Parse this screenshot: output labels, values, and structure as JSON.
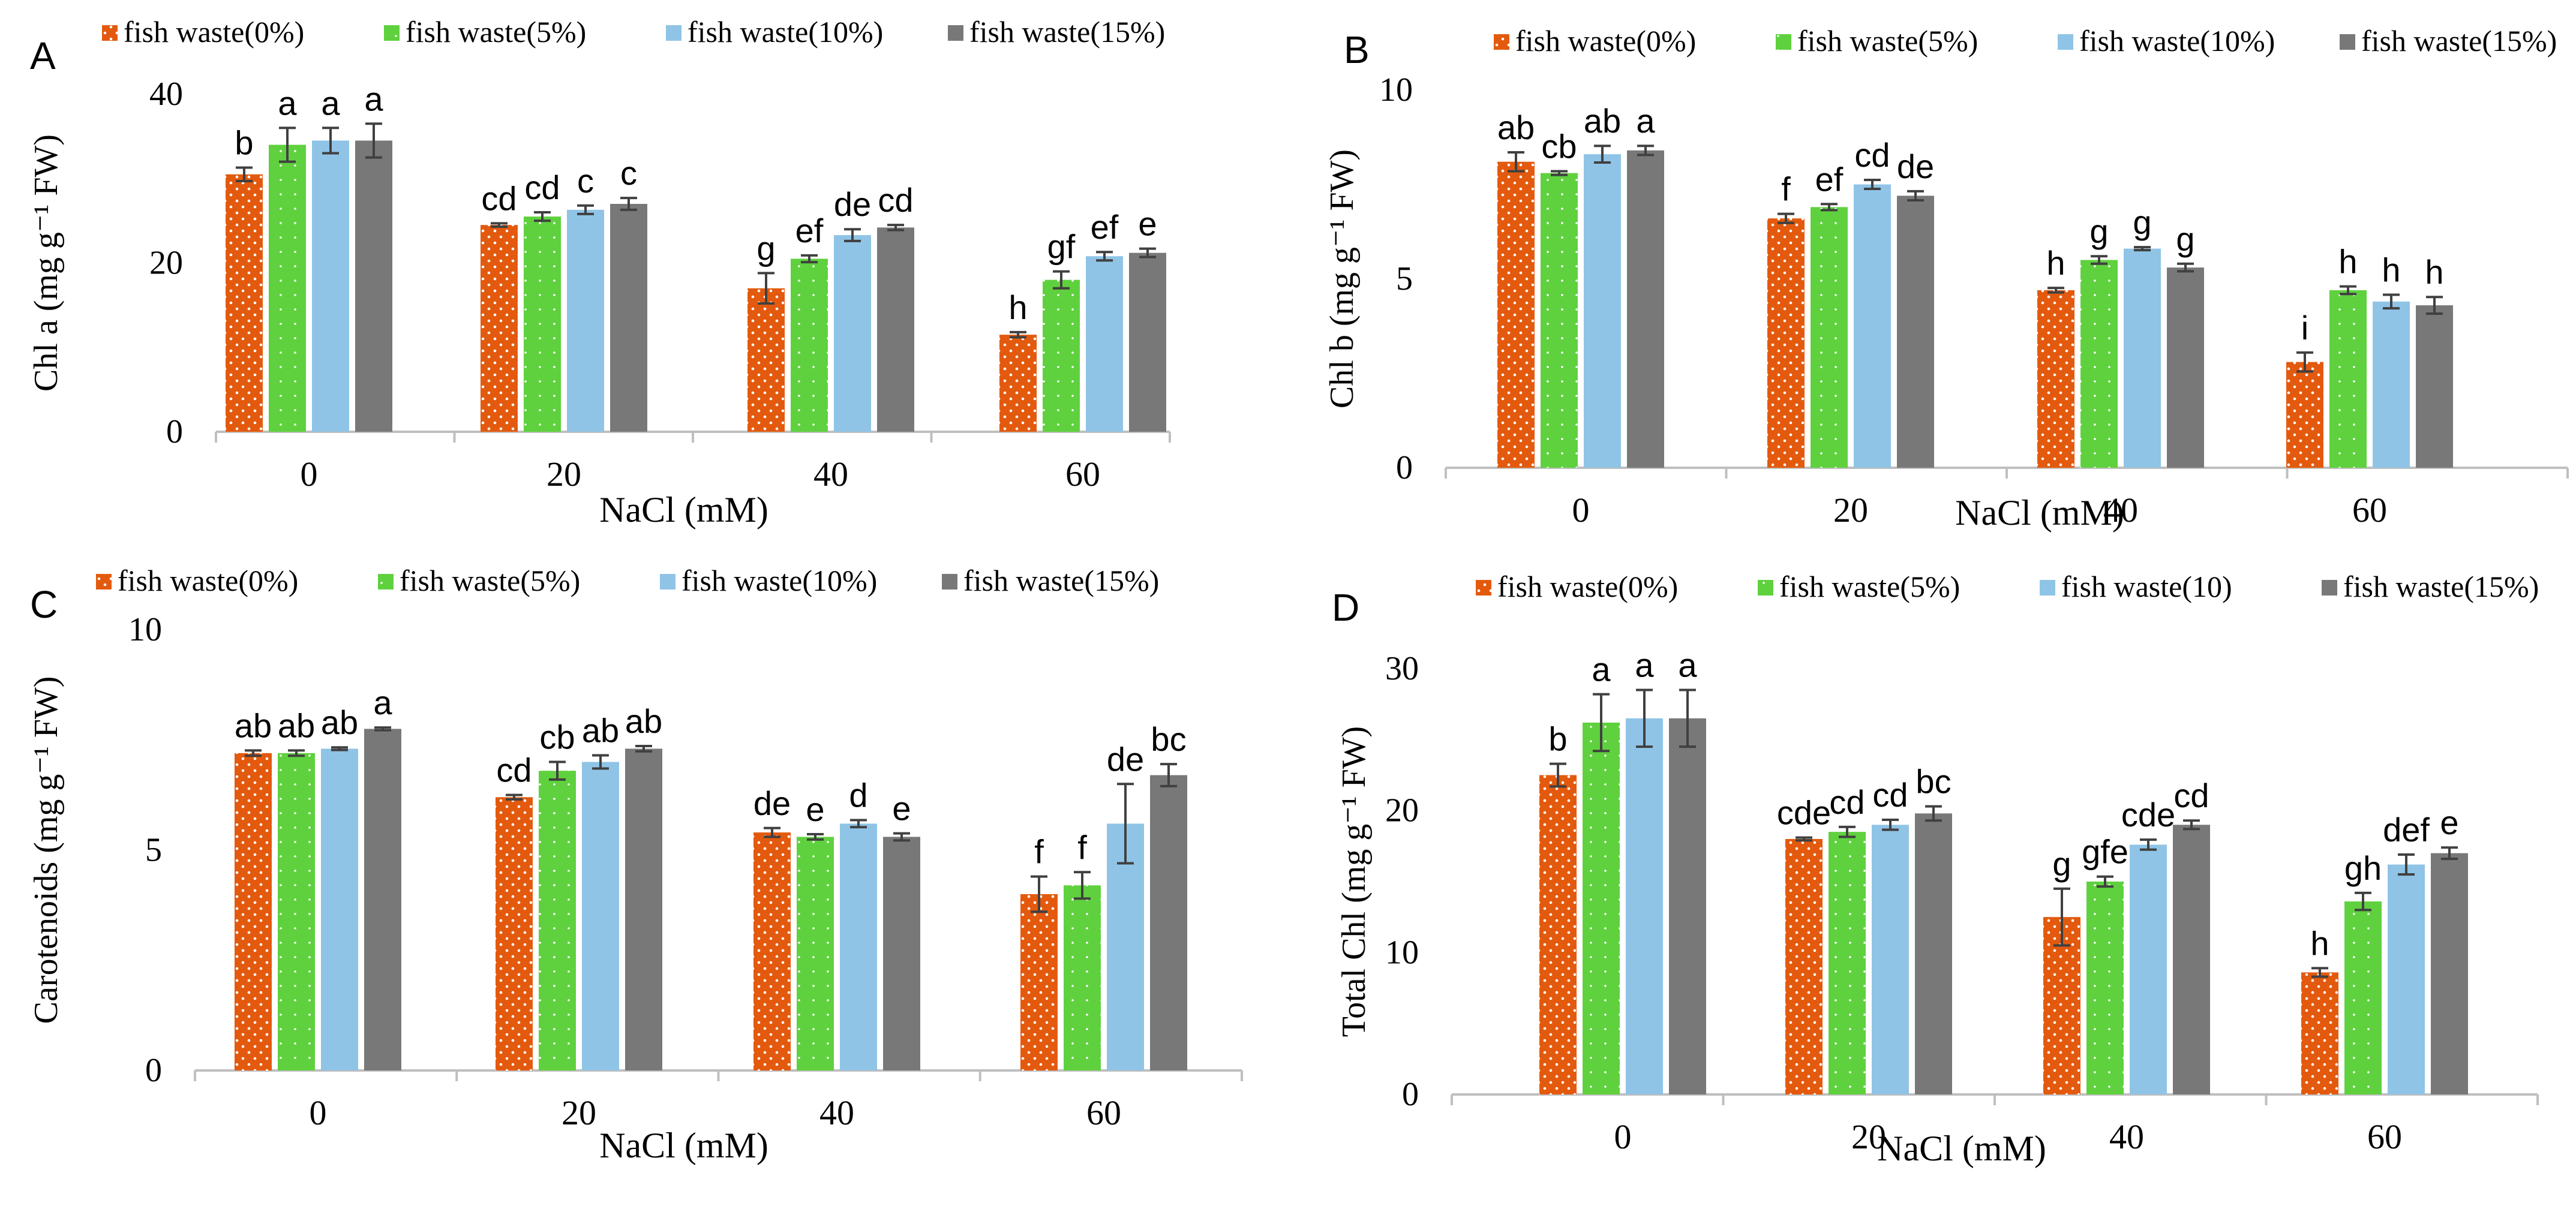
{
  "figure": {
    "xlabel": "NaCl (mM)",
    "categories": [
      "0",
      "20",
      "40",
      "60"
    ],
    "series_colors": [
      "#E35A0E",
      "#5FD13E",
      "#8FC4E6",
      "#787878"
    ]
  },
  "chart_data": [
    {
      "type": "bar",
      "panel_letter": "A",
      "title": "",
      "xlabel": "NaCl (mM)",
      "ylabel": "Chl a (mg g⁻¹ FW)",
      "ylim": [
        0,
        40
      ],
      "yticks": [
        "0",
        "20",
        "40"
      ],
      "categories": [
        "0",
        "20",
        "40",
        "60"
      ],
      "legend": [
        "fish waste(0%)",
        "fish waste(5%)",
        "fish waste(10%)",
        "fish waste(15%)"
      ],
      "series": [
        {
          "name": "fish waste(0%)",
          "values": [
            30.5,
            24.5,
            17,
            11.5
          ],
          "errors": [
            0.8,
            0.2,
            1.8,
            0.3
          ],
          "labels": [
            "b",
            "cd",
            "g",
            "h"
          ]
        },
        {
          "name": "fish waste(5%)",
          "values": [
            34,
            25.5,
            20.5,
            18
          ],
          "errors": [
            2,
            0.5,
            0.4,
            1
          ],
          "labels": [
            "a",
            "cd",
            "ef",
            "gf"
          ]
        },
        {
          "name": "fish waste(10%)",
          "values": [
            34.5,
            26.3,
            23.3,
            20.8
          ],
          "errors": [
            1.5,
            0.5,
            0.7,
            0.5
          ],
          "labels": [
            "a",
            "c",
            "de",
            "ef"
          ]
        },
        {
          "name": "fish waste(15%)",
          "values": [
            34.5,
            27,
            24.2,
            21.2
          ],
          "errors": [
            2,
            0.7,
            0.3,
            0.5
          ],
          "labels": [
            "a",
            "c",
            "cd",
            "e"
          ]
        }
      ]
    },
    {
      "type": "bar",
      "panel_letter": "B",
      "title": "",
      "xlabel": "NaCl (mM)",
      "ylabel": "Chl b (mg g⁻¹ FW)",
      "ylim": [
        0,
        10
      ],
      "yticks": [
        "0",
        "5",
        "10"
      ],
      "categories": [
        "0",
        "20",
        "40",
        "60"
      ],
      "legend": [
        "fish waste(0%)",
        "fish waste(5%)",
        "fish waste(10%)",
        "fish waste(15%)"
      ],
      "series": [
        {
          "name": "fish waste(0%)",
          "values": [
            8.1,
            6.6,
            4.7,
            2.8
          ],
          "errors": [
            0.25,
            0.12,
            0.06,
            0.25
          ],
          "labels": [
            "ab",
            "f",
            "h",
            "i"
          ]
        },
        {
          "name": "fish waste(5%)",
          "values": [
            7.8,
            6.9,
            5.5,
            4.7
          ],
          "errors": [
            0.05,
            0.08,
            0.1,
            0.1
          ],
          "labels": [
            "cb",
            "ef",
            "g",
            "h"
          ]
        },
        {
          "name": "fish waste(10%)",
          "values": [
            8.3,
            7.5,
            5.8,
            4.4
          ],
          "errors": [
            0.22,
            0.12,
            0.04,
            0.18
          ],
          "labels": [
            "ab",
            "cd",
            "g",
            "h"
          ]
        },
        {
          "name": "fish waste(15%)",
          "values": [
            8.4,
            7.2,
            5.3,
            4.3
          ],
          "errors": [
            0.12,
            0.12,
            0.1,
            0.22
          ],
          "labels": [
            "a",
            "de",
            "g",
            "h"
          ]
        }
      ]
    },
    {
      "type": "bar",
      "panel_letter": "C",
      "title": "",
      "xlabel": "NaCl (mM)",
      "ylabel": "Carotenoids (mg g⁻¹ FW)",
      "ylim": [
        0,
        10
      ],
      "yticks": [
        "0",
        "5",
        "10"
      ],
      "categories": [
        "0",
        "20",
        "40",
        "60"
      ],
      "legend": [
        "fish waste(0%)",
        "fish waste(5%)",
        "fish waste(10%)",
        "fish waste(15%)"
      ],
      "series": [
        {
          "name": "fish waste(0%)",
          "values": [
            7.2,
            6.2,
            5.4,
            4.0
          ],
          "errors": [
            0.06,
            0.05,
            0.1,
            0.4
          ],
          "labels": [
            "ab",
            "cd",
            "de",
            "f"
          ]
        },
        {
          "name": "fish waste(5%)",
          "values": [
            7.2,
            6.8,
            5.3,
            4.2
          ],
          "errors": [
            0.06,
            0.2,
            0.06,
            0.3
          ],
          "labels": [
            "ab",
            "cb",
            "e",
            "f"
          ]
        },
        {
          "name": "fish waste(10%)",
          "values": [
            7.3,
            7.0,
            5.6,
            5.6
          ],
          "errors": [
            0.03,
            0.15,
            0.08,
            0.9
          ],
          "labels": [
            "ab",
            "ab",
            "d",
            "de"
          ]
        },
        {
          "name": "fish waste(15%)",
          "values": [
            7.75,
            7.3,
            5.3,
            6.7
          ],
          "errors": [
            0.03,
            0.06,
            0.08,
            0.25
          ],
          "labels": [
            "a",
            "ab",
            "e",
            "bc"
          ]
        }
      ]
    },
    {
      "type": "bar",
      "panel_letter": "D",
      "title": "",
      "xlabel": "NaCl (mM)",
      "ylabel": "Total Chl (mg g⁻¹ FW)",
      "ylim": [
        0,
        30
      ],
      "yticks": [
        "0",
        "10",
        "20",
        "30"
      ],
      "categories": [
        "0",
        "20",
        "40",
        "60"
      ],
      "legend": [
        "fish waste(0%)",
        "fish waste(5%)",
        "fish waste(10)",
        "fish waste(15%)"
      ],
      "series": [
        {
          "name": "fish waste(0%)",
          "values": [
            22.5,
            18,
            12.5,
            8.6
          ],
          "errors": [
            0.8,
            0.1,
            2,
            0.3
          ],
          "labels": [
            "b",
            "cde",
            "g",
            "h"
          ]
        },
        {
          "name": "fish waste(5%)",
          "values": [
            26.2,
            18.5,
            15,
            13.6
          ],
          "errors": [
            2,
            0.35,
            0.35,
            0.6
          ],
          "labels": [
            "a",
            "cd",
            "gfe",
            "gh"
          ]
        },
        {
          "name": "fish waste(10)",
          "values": [
            26.5,
            19,
            17.6,
            16.2
          ],
          "errors": [
            2,
            0.35,
            0.35,
            0.7
          ],
          "labels": [
            "a",
            "cd",
            "cde",
            "def"
          ]
        },
        {
          "name": "fish waste(15%)",
          "values": [
            26.5,
            19.8,
            19,
            17
          ],
          "errors": [
            2,
            0.5,
            0.3,
            0.4
          ],
          "labels": [
            "a",
            "bc",
            "cd",
            "e"
          ]
        }
      ]
    }
  ]
}
